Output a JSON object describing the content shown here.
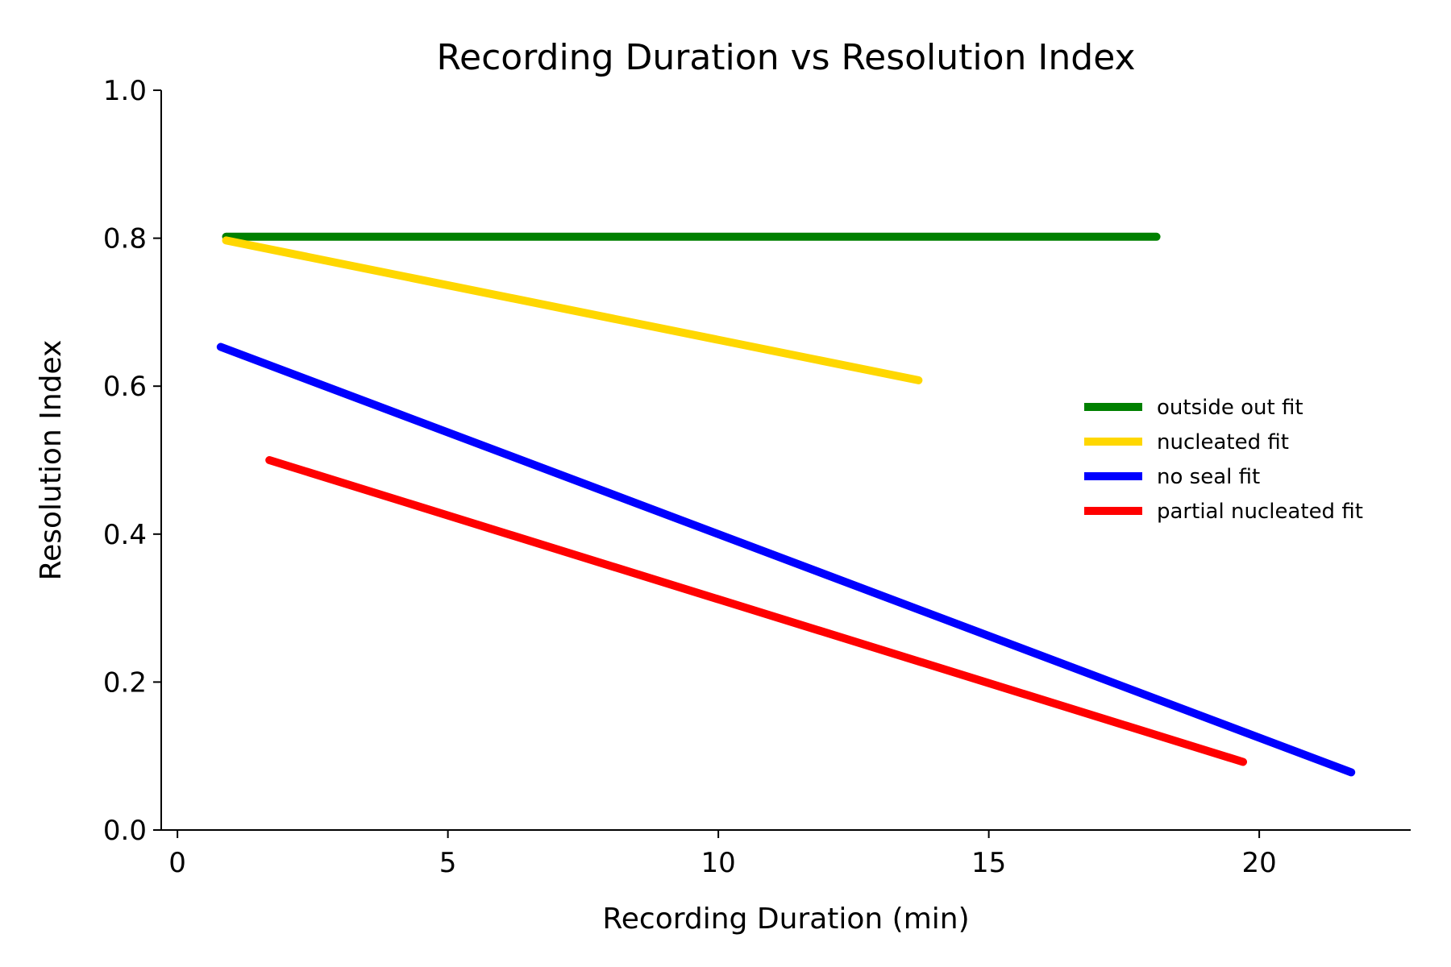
{
  "chart_data": {
    "type": "line",
    "title": "Recording Duration vs Resolution Index",
    "xlabel": "Recording Duration (min)",
    "ylabel": "Resolution Index",
    "xlim": [
      -0.3,
      22.8
    ],
    "ylim": [
      0.0,
      1.0
    ],
    "xticks": [
      0,
      5,
      10,
      15,
      20
    ],
    "yticks": [
      0.0,
      0.2,
      0.4,
      0.6,
      0.8,
      1.0
    ],
    "grid": false,
    "legend_position": "center-right",
    "series": [
      {
        "name": "outside out fit",
        "color": "#008000",
        "x": [
          0.9,
          18.1
        ],
        "y": [
          0.802,
          0.802
        ]
      },
      {
        "name": "nucleated fit",
        "color": "#FFD700",
        "x": [
          0.9,
          13.7
        ],
        "y": [
          0.797,
          0.608
        ]
      },
      {
        "name": "no seal fit",
        "color": "#0000FF",
        "x": [
          0.8,
          21.7
        ],
        "y": [
          0.653,
          0.078
        ]
      },
      {
        "name": "partial nucleated fit",
        "color": "#FF0000",
        "x": [
          1.7,
          19.7
        ],
        "y": [
          0.5,
          0.092
        ]
      }
    ]
  }
}
